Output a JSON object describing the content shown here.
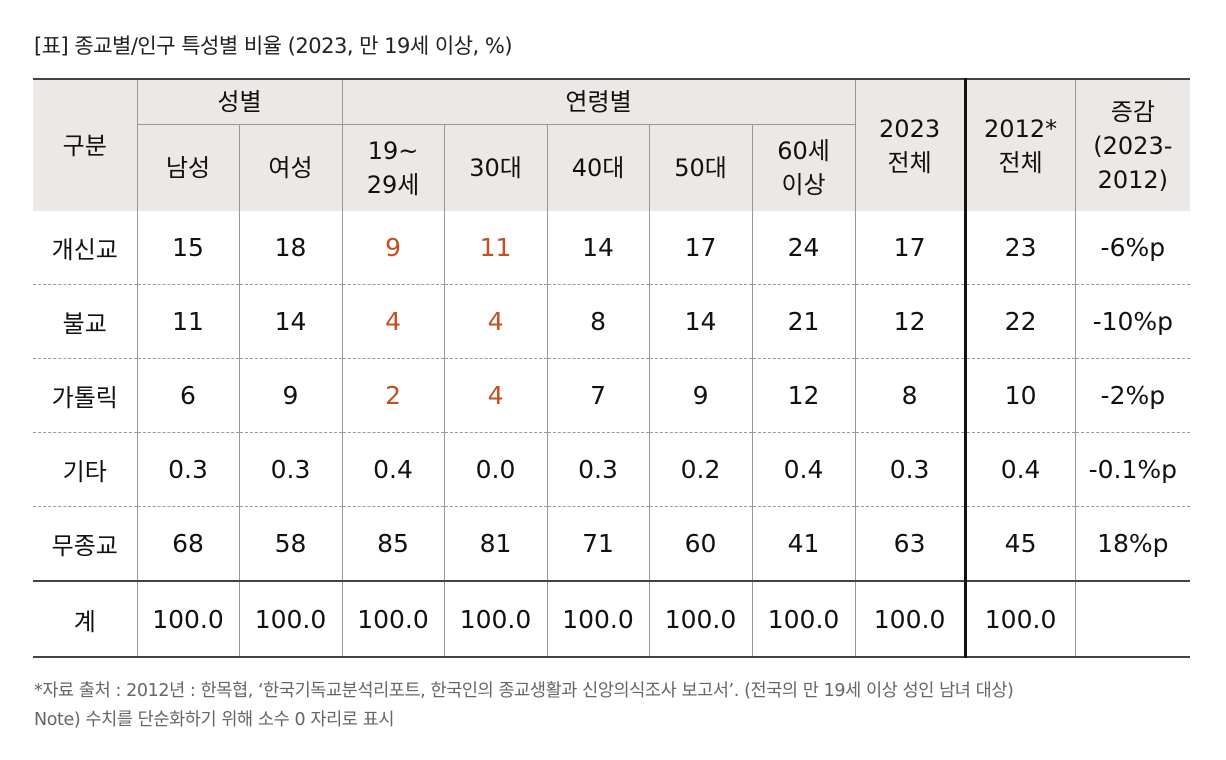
{
  "caption": "[표] 종교별/인구 특성별 비율 (2023, 만 19세 이상, %)",
  "header": {
    "category": "구분",
    "group_gender": "성별",
    "group_age": "연령별",
    "male": "남성",
    "female": "여성",
    "age_19_29_line1": "19~",
    "age_19_29_line2": "29세",
    "age_30": "30대",
    "age_40": "40대",
    "age_50": "50대",
    "age_60_line1": "60세",
    "age_60_line2": "이상",
    "total2023_line1": "2023",
    "total2023_line2": "전체",
    "total2012_line1": "2012*",
    "total2012_line2": "전체",
    "change_line1": "증감",
    "change_line2": "(2023-",
    "change_line3": "2012)"
  },
  "rows": [
    {
      "label": "개신교",
      "values": [
        "15",
        "18",
        "9",
        "11",
        "14",
        "17",
        "24",
        "17",
        "23",
        "-6%p"
      ],
      "highlight": [
        2,
        3
      ]
    },
    {
      "label": "불교",
      "values": [
        "11",
        "14",
        "4",
        "4",
        "8",
        "14",
        "21",
        "12",
        "22",
        "-10%p"
      ],
      "highlight": [
        2,
        3
      ]
    },
    {
      "label": "가톨릭",
      "values": [
        "6",
        "9",
        "2",
        "4",
        "7",
        "9",
        "12",
        "8",
        "10",
        "-2%p"
      ],
      "highlight": [
        2,
        3
      ]
    },
    {
      "label": "기타",
      "values": [
        "0.3",
        "0.3",
        "0.4",
        "0.0",
        "0.3",
        "0.2",
        "0.4",
        "0.3",
        "0.4",
        "-0.1%p"
      ],
      "highlight": []
    },
    {
      "label": "무종교",
      "values": [
        "68",
        "58",
        "85",
        "81",
        "71",
        "60",
        "41",
        "63",
        "45",
        "18%p"
      ],
      "highlight": []
    },
    {
      "label": "계",
      "values": [
        "100.0",
        "100.0",
        "100.0",
        "100.0",
        "100.0",
        "100.0",
        "100.0",
        "100.0",
        "100.0",
        ""
      ],
      "highlight": []
    }
  ],
  "colors": {
    "highlight": "#c4501f",
    "header_bg": "#ebe8e6"
  },
  "notes": {
    "source": "*자료 출처 : 2012년 : 한목협, ‘한국기독교분석리포트, 한국인의 종교생활과 신앙의식조사 보고서’. (전국의 만 19세 이상 성인 남녀 대상)",
    "rounding": "Note) 수치를 단순화하기 위해 소수 0 자리로 표시"
  }
}
